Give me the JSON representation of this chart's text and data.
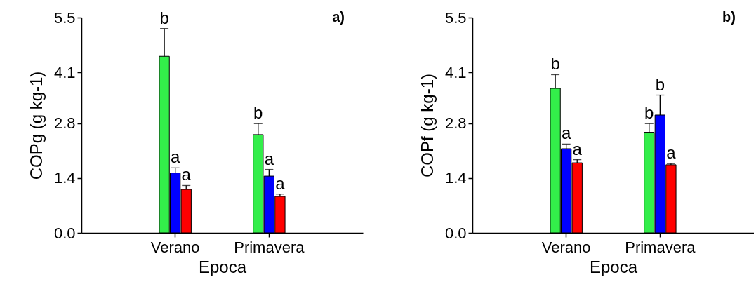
{
  "chart_data": [
    {
      "type": "bar",
      "categories": [
        "Verano",
        "Primavera"
      ],
      "xlabel": "Epoca",
      "ylabel": "COPg (g kg-1)",
      "ylim": [
        0,
        5.5
      ],
      "yticks": [
        {
          "value": 0,
          "label": "0.0"
        },
        1.4,
        2.8,
        4.1,
        5.5
      ],
      "series": [
        {
          "color": "#33ee4a",
          "values": [
            4.51,
            2.51
          ],
          "errors": [
            0.71,
            0.28
          ]
        },
        {
          "color": "#0000ff",
          "values": [
            1.53,
            1.45
          ],
          "errors": [
            0.13,
            0.17
          ]
        },
        {
          "color": "#ff0000",
          "values": [
            1.11,
            0.93
          ],
          "errors": [
            0.1,
            0.06
          ]
        }
      ],
      "annotations": [
        "a)",
        "b",
        "a",
        "a",
        "b",
        "a",
        "a"
      ]
    },
    {
      "type": "bar",
      "categories": [
        "Verano",
        "Primavera"
      ],
      "xlabel": "Epoca",
      "ylabel": "COPf (g kg-1)",
      "ylim": [
        0,
        5.5
      ],
      "yticks": [
        {
          "value": 0,
          "label": "0.0"
        },
        1.4,
        2.8,
        4.1,
        5.5
      ],
      "series": [
        {
          "color": "#33ee4a",
          "values": [
            3.69,
            2.57
          ],
          "errors": [
            0.35,
            0.22
          ]
        },
        {
          "color": "#0000ff",
          "values": [
            2.15,
            3.01
          ],
          "errors": [
            0.12,
            0.51
          ]
        },
        {
          "color": "#ff0000",
          "values": [
            1.79,
            1.74
          ],
          "errors": [
            0.08,
            0.03
          ]
        }
      ],
      "annotations": [
        "b)",
        "b",
        "a",
        "a",
        "b",
        "b",
        "a"
      ]
    }
  ]
}
